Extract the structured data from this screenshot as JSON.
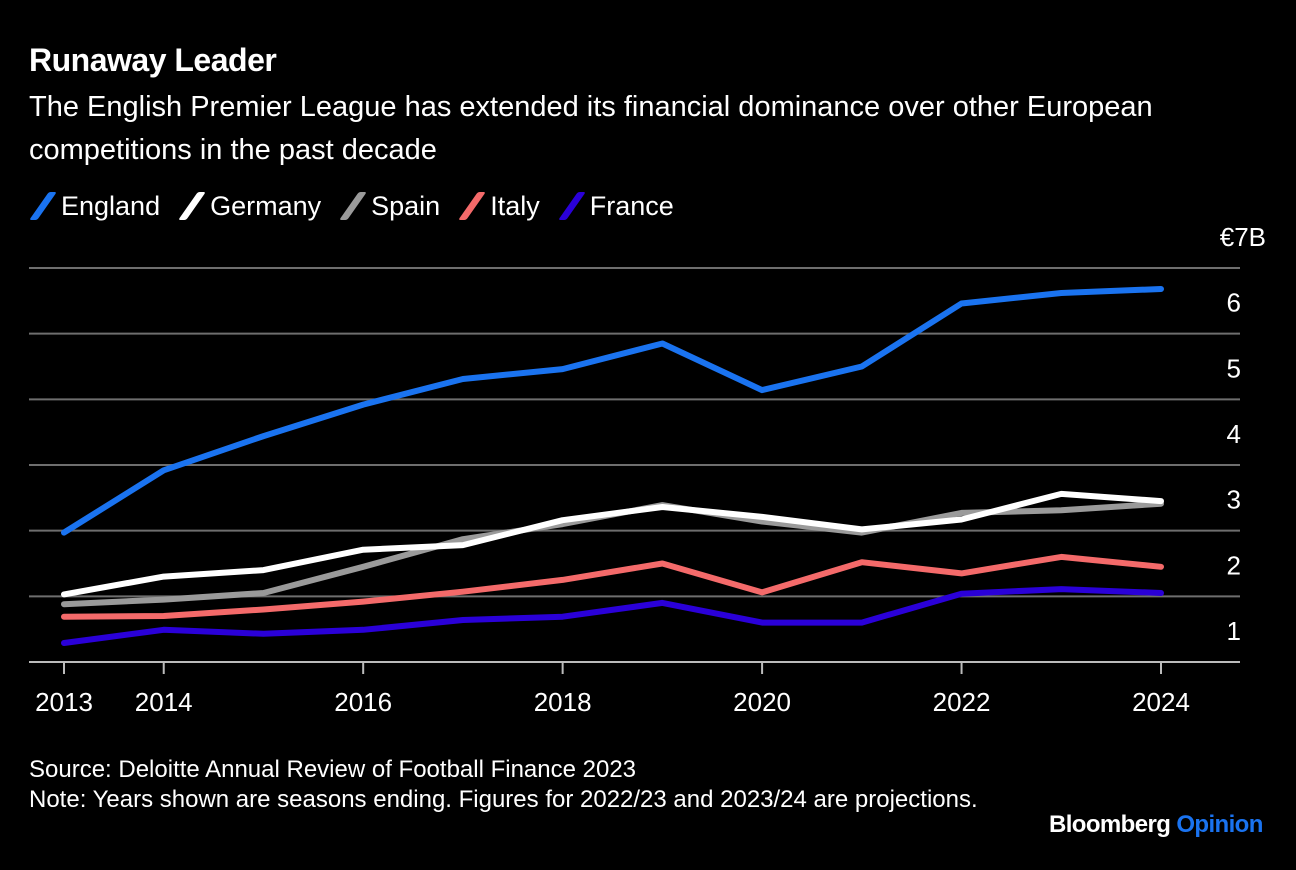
{
  "header": {
    "title": "Runaway Leader",
    "subtitle": "The English Premier League has extended its financial dominance over other European competitions in the past decade"
  },
  "legend": [
    {
      "label": "England",
      "color": "#1a73f0"
    },
    {
      "label": "Germany",
      "color": "#ffffff"
    },
    {
      "label": "Spain",
      "color": "#9a9a9a"
    },
    {
      "label": "Italy",
      "color": "#f46a6a"
    },
    {
      "label": "France",
      "color": "#2a00d8"
    }
  ],
  "footer": {
    "source": "Source: Deloitte Annual Review of Football Finance 2023",
    "note": "Note: Years shown are seasons ending. Figures for 2022/23 and 2023/24 are projections."
  },
  "brand": {
    "name": "Bloomberg",
    "section": "Opinion"
  },
  "chart_data": {
    "type": "line",
    "title": "Runaway Leader",
    "subtitle": "The English Premier League has extended its financial dominance over other European competitions in the past decade",
    "xlabel": "",
    "ylabel": "",
    "x": [
      2013,
      2014,
      2015,
      2016,
      2017,
      2018,
      2019,
      2020,
      2021,
      2022,
      2023,
      2024
    ],
    "x_ticks": [
      2013,
      2014,
      2016,
      2018,
      2020,
      2022,
      2024
    ],
    "x_tick_labels": [
      "2013",
      "2014",
      "2016",
      "2018",
      "2020",
      "2022",
      "2024"
    ],
    "y_ticks": [
      1,
      2,
      3,
      4,
      5,
      6,
      7
    ],
    "y_tick_labels": [
      "1",
      "2",
      "3",
      "4",
      "5",
      "6",
      "€7B"
    ],
    "ylim": [
      1,
      7
    ],
    "grid": true,
    "y_axis_side": "right",
    "legend_position": "top-left",
    "series": [
      {
        "name": "England",
        "color": "#1a73f0",
        "values": [
          2.97,
          3.92,
          4.44,
          4.92,
          5.31,
          5.46,
          5.85,
          5.14,
          5.5,
          6.46,
          6.62,
          6.68
        ]
      },
      {
        "name": "Germany",
        "color": "#ffffff",
        "values": [
          2.03,
          2.3,
          2.4,
          2.71,
          2.78,
          3.16,
          3.36,
          3.21,
          3.02,
          3.17,
          3.56,
          3.45
        ]
      },
      {
        "name": "Spain",
        "color": "#9a9a9a",
        "values": [
          1.88,
          1.95,
          2.05,
          2.45,
          2.87,
          3.1,
          3.39,
          3.14,
          2.97,
          3.27,
          3.31,
          3.41
        ]
      },
      {
        "name": "Italy",
        "color": "#f46a6a",
        "values": [
          1.69,
          1.7,
          1.8,
          1.92,
          2.07,
          2.25,
          2.5,
          2.06,
          2.52,
          2.35,
          2.6,
          2.45
        ]
      },
      {
        "name": "France",
        "color": "#2a00d8",
        "values": [
          1.29,
          1.49,
          1.43,
          1.49,
          1.64,
          1.69,
          1.9,
          1.6,
          1.6,
          2.04,
          2.11,
          2.05
        ]
      }
    ]
  }
}
